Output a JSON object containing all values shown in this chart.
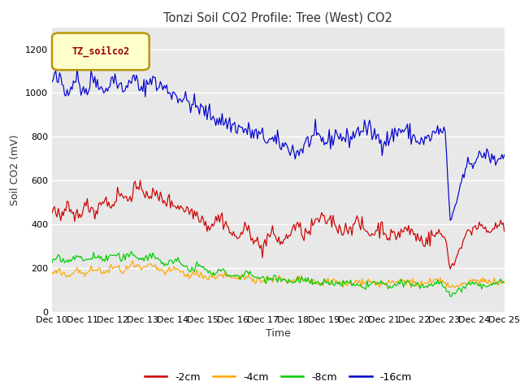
{
  "title": "Tonzi Soil CO2 Profile: Tree (West) CO2",
  "ylabel": "Soil CO2 (mV)",
  "xlabel": "Time",
  "ylim": [
    0,
    1300
  ],
  "yticks": [
    0,
    200,
    400,
    600,
    800,
    1000,
    1200
  ],
  "bg_color": "#e8e8e8",
  "legend_label": "TZ_soilco2",
  "legend_border_color": "#b8960a",
  "legend_bg_color": "#ffffcc",
  "legend_text_color": "#990000",
  "series_colors": {
    "-2cm": "#cc0000",
    "-4cm": "#ffa500",
    "-8cm": "#00cc00",
    "-16cm": "#0000cc"
  },
  "n_points": 360,
  "x_tick_labels": [
    "Dec 10",
    "Dec 11",
    "Dec 12",
    "Dec 13",
    "Dec 14",
    "Dec 15",
    "Dec 16",
    "Dec 17",
    "Dec 18",
    "Dec 19",
    "Dec 20",
    "Dec 21",
    "Dec 22",
    "Dec 23",
    "Dec 24",
    "Dec 25"
  ]
}
